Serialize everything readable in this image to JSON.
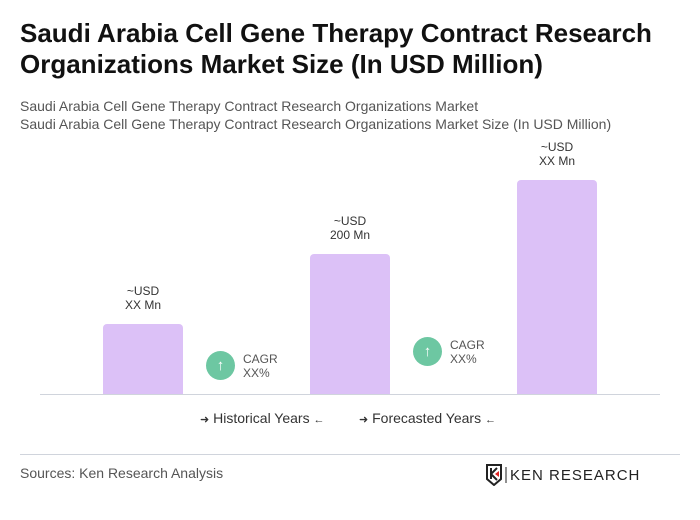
{
  "title": "Saudi Arabia Cell Gene Therapy Contract Research Organizations Market Size (In USD Million)",
  "subtitle1": "Saudi Arabia Cell Gene Therapy Contract Research Organizations Market",
  "subtitle2": "Saudi Arabia Cell Gene Therapy Contract Research Organizations Market Size (In USD Million)",
  "chart_data": {
    "type": "bar",
    "bars": [
      {
        "label_line1": "~USD",
        "label_line2": "XX Mn",
        "value": null
      },
      {
        "label_line1": "~USD",
        "label_line2": "200 Mn",
        "value": 200
      },
      {
        "label_line1": "~USD",
        "label_line2": "XX Mn",
        "value": null
      }
    ],
    "bar_color": "#dcc1f7",
    "cagr": [
      {
        "label": "CAGR",
        "value": "XX%"
      },
      {
        "label": "CAGR",
        "value": "XX%"
      }
    ],
    "cagr_color": "#6dc7a2",
    "legend": [
      "Historical Years",
      "Forecasted Years"
    ]
  },
  "source": "Sources: Ken Research Analysis",
  "logo_text": "KEN RESEARCH"
}
